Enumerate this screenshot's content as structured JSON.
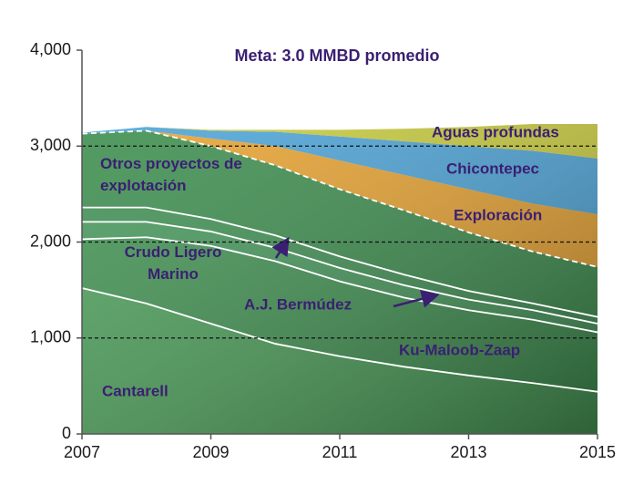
{
  "chart_data": {
    "type": "stacked_area",
    "title": "Meta: 3.0 MMBD promedio",
    "x": [
      2007,
      2008,
      2009,
      2010,
      2011,
      2012,
      2013,
      2014,
      2015
    ],
    "xlim": [
      2007,
      2015
    ],
    "xticks": [
      2007,
      2009,
      2011,
      2013,
      2015
    ],
    "ylim": [
      0,
      4000
    ],
    "yticks": [
      0,
      {
        "value": 1000,
        "label": "1,000"
      },
      {
        "value": 2000,
        "label": "2,000"
      },
      {
        "value": 3000,
        "label": "3,000"
      },
      {
        "value": 4000,
        "label": "4,000"
      }
    ],
    "grid": true,
    "series": [
      {
        "name": "Cantarell",
        "color": "#4a9e58",
        "values": [
          1520,
          1360,
          1150,
          940,
          810,
          700,
          610,
          530,
          440
        ]
      },
      {
        "name": "Ku-Maloob-Zaap",
        "color": "#3f9150",
        "values": [
          510,
          690,
          810,
          860,
          780,
          720,
          680,
          660,
          620
        ]
      },
      {
        "name": "A.J. Bermúdez",
        "color": "#44975a",
        "values": [
          180,
          160,
          150,
          140,
          140,
          130,
          110,
          100,
          90
        ]
      },
      {
        "name": "Crudo Ligero Marino",
        "color": "#3e8f52",
        "values": [
          150,
          150,
          130,
          130,
          120,
          110,
          90,
          70,
          70
        ]
      },
      {
        "name": "Otros proyectos de explotación",
        "color": "#3a8c4c",
        "values": [
          770,
          800,
          760,
          730,
          700,
          670,
          610,
          540,
          520
        ]
      },
      {
        "name": "Exploración",
        "color": "#e8a22e",
        "values": [
          0,
          0,
          80,
          200,
          300,
          370,
          450,
          500,
          550
        ]
      },
      {
        "name": "Chicontepec",
        "color": "#4aa3d8",
        "values": [
          10,
          40,
          80,
          150,
          250,
          350,
          450,
          550,
          580
        ]
      },
      {
        "name": "Aguas profundas",
        "color": "#c9cc3a",
        "values": [
          0,
          0,
          10,
          20,
          70,
          130,
          200,
          280,
          360
        ]
      }
    ]
  }
}
